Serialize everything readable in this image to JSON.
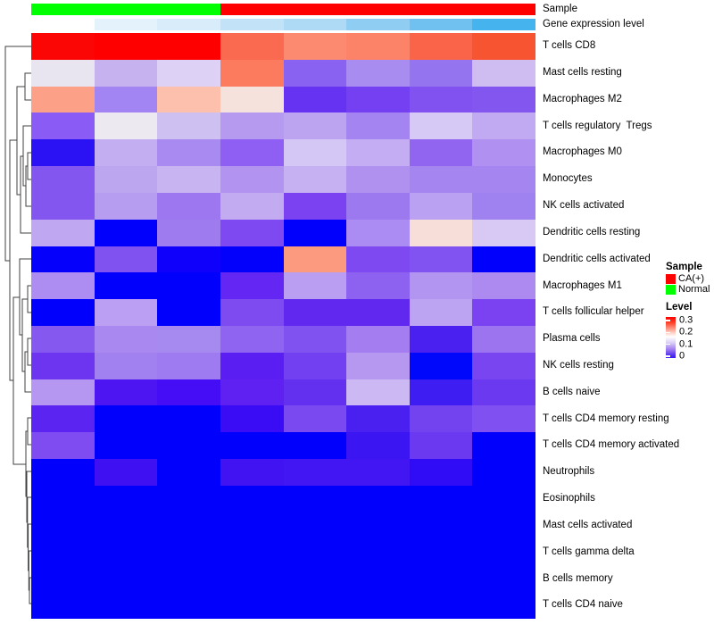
{
  "annotation_bars": {
    "sample": {
      "label": "Sample",
      "colors": [
        "#00ff00",
        "#00ff00",
        "#00ff00",
        "#ff0000",
        "#ff0000",
        "#ff0000",
        "#ff0000",
        "#ff0000"
      ]
    },
    "gene_expression": {
      "label": "Gene expression level",
      "colors": [
        "#ffffff",
        "#e4f2fb",
        "#d8ecfa",
        "#c2e2f8",
        "#aedaf6",
        "#8fcdf3",
        "#70c1f0",
        "#45b4ee"
      ]
    }
  },
  "chart_data": {
    "type": "heatmap",
    "title": "",
    "columns": {
      "count": 8,
      "groups": [
        "Normal",
        "Normal",
        "Normal",
        "CA(+)",
        "CA(+)",
        "CA(+)",
        "CA(+)",
        "CA(+)"
      ]
    },
    "rows": [
      "T cells CD8",
      "Mast cells resting",
      "Macrophages M2",
      "T cells regulatory  Tregs",
      "Macrophages M0",
      "Monocytes",
      "NK cells activated",
      "Dendritic cells resting",
      "Dendritic cells activated",
      "Macrophages M1",
      "T cells follicular helper",
      "Plasma cells",
      "NK cells resting",
      "B cells naive",
      "T cells CD4 memory resting",
      "T cells CD4 memory activated",
      "Neutrophils",
      "Eosinophils",
      "Mast cells activated",
      "T cells gamma delta",
      "B cells memory",
      "T cells CD4 naive"
    ],
    "values": [
      [
        0.3,
        0.3,
        0.3,
        0.24,
        0.22,
        0.22,
        0.24,
        0.25
      ],
      [
        0.14,
        0.12,
        0.13,
        0.23,
        0.08,
        0.1,
        0.09,
        0.12
      ],
      [
        0.21,
        0.1,
        0.19,
        0.17,
        0.06,
        0.07,
        0.08,
        0.08
      ],
      [
        0.08,
        0.14,
        0.12,
        0.11,
        0.11,
        0.1,
        0.13,
        0.11
      ],
      [
        0.02,
        0.12,
        0.1,
        0.08,
        0.13,
        0.12,
        0.09,
        0.1
      ],
      [
        0.08,
        0.11,
        0.12,
        0.11,
        0.12,
        0.1,
        0.1,
        0.1
      ],
      [
        0.08,
        0.11,
        0.09,
        0.11,
        0.07,
        0.09,
        0.11,
        0.09
      ],
      [
        0.11,
        0.0,
        0.09,
        0.07,
        0.0,
        0.1,
        0.17,
        0.13
      ],
      [
        0.0,
        0.08,
        0.01,
        0.0,
        0.21,
        0.07,
        0.08,
        0.0
      ],
      [
        0.1,
        0.0,
        0.0,
        0.06,
        0.11,
        0.08,
        0.1,
        0.1
      ],
      [
        0.0,
        0.11,
        0.0,
        0.07,
        0.06,
        0.06,
        0.11,
        0.07
      ],
      [
        0.08,
        0.1,
        0.1,
        0.08,
        0.08,
        0.1,
        0.04,
        0.09
      ],
      [
        0.07,
        0.1,
        0.09,
        0.05,
        0.07,
        0.11,
        0.0,
        0.07
      ],
      [
        0.11,
        0.05,
        0.04,
        0.06,
        0.06,
        0.12,
        0.04,
        0.06
      ],
      [
        0.05,
        0.0,
        0.0,
        0.03,
        0.07,
        0.04,
        0.07,
        0.08
      ],
      [
        0.07,
        0.0,
        0.0,
        0.0,
        0.0,
        0.04,
        0.06,
        0.0
      ],
      [
        0.0,
        0.04,
        0.0,
        0.04,
        0.04,
        0.04,
        0.03,
        0.0
      ],
      [
        0.0,
        0.0,
        0.0,
        0.0,
        0.0,
        0.0,
        0.0,
        0.0
      ],
      [
        0.0,
        0.0,
        0.0,
        0.0,
        0.0,
        0.0,
        0.0,
        0.0
      ],
      [
        0.0,
        0.0,
        0.0,
        0.0,
        0.0,
        0.0,
        0.0,
        0.0
      ],
      [
        0.0,
        0.0,
        0.0,
        0.0,
        0.0,
        0.0,
        0.0,
        0.0
      ],
      [
        0.0,
        0.0,
        0.0,
        0.0,
        0.0,
        0.0,
        0.0,
        0.0
      ]
    ],
    "cell_colors": [
      [
        "#fb0505",
        "#ff0000",
        "#ff0000",
        "#fa6a50",
        "#fc8a70",
        "#fc8268",
        "#fa6448",
        "#f75532"
      ],
      [
        "#e8e4f0",
        "#c5b2ef",
        "#ddd2f5",
        "#fc7a5e",
        "#8a62f2",
        "#a98cf0",
        "#9574f0",
        "#cfbdf2"
      ],
      [
        "#fca088",
        "#a284f2",
        "#fcc0ac",
        "#f5e2dc",
        "#6733f2",
        "#7440f2",
        "#8152f0",
        "#8356f0"
      ],
      [
        "#8a5cf5",
        "#eceaf0",
        "#cfc0f2",
        "#b59af0",
        "#bda4f0",
        "#a384f0",
        "#d6c9f5",
        "#c2aaf2"
      ],
      [
        "#2a12f5",
        "#c3aef2",
        "#a98af0",
        "#8e5ff2",
        "#d4c6f5",
        "#c4adf2",
        "#9265f0",
        "#b090f0"
      ],
      [
        "#8356f0",
        "#bda6f0",
        "#c9b4f2",
        "#b393f0",
        "#c6b1f2",
        "#b091f0",
        "#a586f0",
        "#a586f0"
      ],
      [
        "#8356f0",
        "#b79df0",
        "#9c77f0",
        "#c3abf2",
        "#7a42f0",
        "#9d79f0",
        "#bba1f1",
        "#a081f0"
      ],
      [
        "#bfa7f2",
        "#0000fc",
        "#9e7cf0",
        "#7e49f0",
        "#0000fc",
        "#ab8cf2",
        "#f7ded8",
        "#d7c9f3"
      ],
      [
        "#0500fc",
        "#8052f0",
        "#0f00fc",
        "#0300fc",
        "#fc9a80",
        "#7e49f0",
        "#8153f0",
        "#0000fc"
      ],
      [
        "#ae8df2",
        "#0000fc",
        "#0000fc",
        "#6426f2",
        "#b99ef2",
        "#8e62f0",
        "#b294f1",
        "#ac8af0"
      ],
      [
        "#0000fc",
        "#bb9ff2",
        "#0000fc",
        "#7e4bf0",
        "#6129f0",
        "#6129f0",
        "#bda4f2",
        "#7a42f0"
      ],
      [
        "#8558f0",
        "#a989f0",
        "#a78af0",
        "#8f64f0",
        "#8052f0",
        "#a47ef0",
        "#4a20f0",
        "#9c74f0"
      ],
      [
        "#6e35f0",
        "#a181f0",
        "#9e7bf0",
        "#5a1df2",
        "#7240f0",
        "#b698f1",
        "#0008fc",
        "#7845f0"
      ],
      [
        "#b597f2",
        "#4d15f2",
        "#450df5",
        "#5e21f2",
        "#6330f0",
        "#ccb8f3",
        "#3d1df2",
        "#6b3af0"
      ],
      [
        "#5c24f0",
        "#0000fc",
        "#0000fc",
        "#3a0cf5",
        "#7a4af0",
        "#4a20f0",
        "#7343f0",
        "#8051f0"
      ],
      [
        "#7e4cf0",
        "#0000fc",
        "#0000fc",
        "#0000fc",
        "#0000fc",
        "#3c16f2",
        "#6b3af0",
        "#0000fc"
      ],
      [
        "#0000fc",
        "#3f11f2",
        "#0000fc",
        "#4213f2",
        "#4216f2",
        "#4216f2",
        "#2f0cf5",
        "#0000fc"
      ],
      [
        "#0000fc",
        "#0000fc",
        "#0000fc",
        "#0000fc",
        "#0000fc",
        "#0000fc",
        "#0000fc",
        "#0000fc"
      ],
      [
        "#0000fc",
        "#0000fc",
        "#0000fc",
        "#0000fc",
        "#0000fc",
        "#0000fc",
        "#0000fc",
        "#0000fc"
      ],
      [
        "#0000fc",
        "#0000fc",
        "#0000fc",
        "#0000fc",
        "#0000fc",
        "#0000fc",
        "#0000fc",
        "#0000fc"
      ],
      [
        "#0000fc",
        "#0000fc",
        "#0000fc",
        "#0000fc",
        "#0000fc",
        "#0000fc",
        "#0000fc",
        "#0000fc"
      ],
      [
        "#0000fc",
        "#0000fc",
        "#0000fc",
        "#0000fc",
        "#0000fc",
        "#0000fc",
        "#0000fc",
        "#0000fc"
      ]
    ],
    "color_scale": {
      "min": 0,
      "max": 0.3,
      "low": "#0000ff",
      "mid": "#ffffff",
      "high": "#ff0000",
      "mid_value": 0.15
    },
    "legend_position": "right",
    "grid": false
  },
  "legend": {
    "sample": {
      "title": "Sample",
      "items": [
        {
          "label": "CA(+)",
          "color": "#ff0000"
        },
        {
          "label": "Normal",
          "color": "#00ff00"
        }
      ]
    },
    "level": {
      "title": "Level",
      "ticks": [
        "0.3",
        "0.2",
        "0.1",
        "0"
      ]
    }
  }
}
